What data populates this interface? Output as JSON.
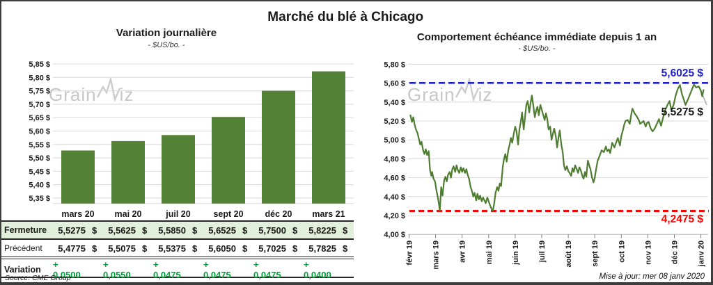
{
  "header": {
    "title": "Marché du blé à Chicago"
  },
  "watermark": {
    "prefix": "Grain",
    "suffix": "iz"
  },
  "footer": {
    "updated": "Mise à jour: mer 08 janv 2020"
  },
  "table": {
    "columns": [
      "mars 20",
      "mai 20",
      "juil 20",
      "sept 20",
      "déc 20",
      "mars 21"
    ],
    "currency": "$",
    "rows": [
      {
        "label": "Fermeture",
        "style": "close",
        "suffix": "$",
        "values": [
          "5,5275",
          "5,5625",
          "5,5850",
          "5,6525",
          "5,7500",
          "5,8225"
        ]
      },
      {
        "label": "Précédent",
        "style": "prev",
        "suffix": "$",
        "values": [
          "5,4775",
          "5,5075",
          "5,5375",
          "5,6050",
          "5,7025",
          "5,7825"
        ]
      },
      {
        "label": "Variation",
        "style": "var",
        "suffix": "",
        "values": [
          "+ 0,0500",
          "+ 0,0550",
          "+ 0,0475",
          "+ 0,0475",
          "+ 0,0475",
          "+ 0,0400"
        ]
      }
    ],
    "source": "Source: CME Group"
  },
  "chart_data": [
    {
      "id": "daily-variation",
      "type": "bar",
      "title": "Variation journalière",
      "subtitle": "- $US/bo. -",
      "categories": [
        "mars 20",
        "mai 20",
        "juil 20",
        "sept 20",
        "déc 20",
        "mars 21"
      ],
      "values": [
        5.5275,
        5.5625,
        5.585,
        5.6525,
        5.75,
        5.8225
      ],
      "ylim": [
        5.33,
        5.85
      ],
      "y_ticks": [
        5.85,
        5.8,
        5.75,
        5.7,
        5.65,
        5.6,
        5.55,
        5.5,
        5.45,
        5.4,
        5.35
      ],
      "y_tick_labels": [
        "5,85 $",
        "5,80 $",
        "5,75 $",
        "5,70 $",
        "5,65 $",
        "5,60 $",
        "5,55 $",
        "5,50 $",
        "5,45 $",
        "5,40 $",
        "5,35 $"
      ],
      "bar_color": "#538135",
      "grid": true,
      "legend": "none"
    },
    {
      "id": "immediate-term-1y",
      "type": "line",
      "title": "Comportement échéance immédiate depuis 1 an",
      "subtitle": "- $US/bo. -",
      "ylim": [
        4.0,
        5.8
      ],
      "y_ticks": [
        5.8,
        5.6,
        5.4,
        5.2,
        5.0,
        4.8,
        4.6,
        4.4,
        4.2,
        4.0
      ],
      "y_tick_labels": [
        "5,80 $",
        "5,60 $",
        "5,40 $",
        "5,20 $",
        "5,00 $",
        "4,80 $",
        "4,60 $",
        "4,40 $",
        "4,20 $",
        "4,00 $"
      ],
      "x_tick_labels": [
        "févr 19",
        "mars 19",
        "avr 19",
        "mai 19",
        "juin 19",
        "juil 19",
        "août 19",
        "sept 19",
        "oct 19",
        "nov 19",
        "déc 19",
        "janv 20"
      ],
      "line_color": "#4e7d31",
      "grid": true,
      "legend": "none",
      "high_line": {
        "value": 5.6025,
        "label": "5,6025 $",
        "color": "#2121cc"
      },
      "low_line": {
        "value": 4.2475,
        "label": "4,2475 $",
        "color": "#fe0000"
      },
      "last_value": 5.5275,
      "last_value_label": "5,5275 $",
      "series": [
        [
          0.05,
          5.26
        ],
        [
          0.11,
          5.19
        ],
        [
          0.16,
          5.24
        ],
        [
          0.21,
          5.16
        ],
        [
          0.26,
          5.11
        ],
        [
          0.32,
          5.07
        ],
        [
          0.37,
          5.01
        ],
        [
          0.42,
          4.95
        ],
        [
          0.47,
          4.98
        ],
        [
          0.53,
          4.89
        ],
        [
          0.58,
          4.85
        ],
        [
          0.63,
          4.9
        ],
        [
          0.68,
          4.84
        ],
        [
          0.74,
          4.88
        ],
        [
          0.79,
          4.68
        ],
        [
          0.84,
          4.62
        ],
        [
          0.87,
          4.66
        ],
        [
          0.92,
          4.59
        ],
        [
          0.98,
          4.56
        ],
        [
          1.03,
          4.47
        ],
        [
          1.08,
          4.4
        ],
        [
          1.13,
          4.31
        ],
        [
          1.16,
          4.25
        ],
        [
          1.21,
          4.5
        ],
        [
          1.26,
          4.41
        ],
        [
          1.32,
          4.57
        ],
        [
          1.37,
          4.61
        ],
        [
          1.42,
          4.56
        ],
        [
          1.47,
          4.63
        ],
        [
          1.53,
          4.66
        ],
        [
          1.58,
          4.6
        ],
        [
          1.63,
          4.69
        ],
        [
          1.68,
          4.72
        ],
        [
          1.74,
          4.66
        ],
        [
          1.79,
          4.73
        ],
        [
          1.84,
          4.68
        ],
        [
          1.89,
          4.65
        ],
        [
          1.95,
          4.71
        ],
        [
          2.0,
          4.66
        ],
        [
          2.05,
          4.7
        ],
        [
          2.11,
          4.65
        ],
        [
          2.16,
          4.69
        ],
        [
          2.21,
          4.63
        ],
        [
          2.26,
          4.59
        ],
        [
          2.32,
          4.5
        ],
        [
          2.37,
          4.46
        ],
        [
          2.42,
          4.4
        ],
        [
          2.47,
          4.44
        ],
        [
          2.53,
          4.36
        ],
        [
          2.58,
          4.43
        ],
        [
          2.63,
          4.37
        ],
        [
          2.68,
          4.41
        ],
        [
          2.74,
          4.35
        ],
        [
          2.79,
          4.39
        ],
        [
          2.84,
          4.36
        ],
        [
          2.89,
          4.33
        ],
        [
          2.95,
          4.39
        ],
        [
          3.0,
          4.35
        ],
        [
          3.05,
          4.31
        ],
        [
          3.11,
          4.27
        ],
        [
          3.16,
          4.25
        ],
        [
          3.21,
          4.33
        ],
        [
          3.26,
          4.44
        ],
        [
          3.32,
          4.5
        ],
        [
          3.37,
          4.46
        ],
        [
          3.42,
          4.54
        ],
        [
          3.47,
          4.51
        ],
        [
          3.53,
          4.71
        ],
        [
          3.58,
          4.8
        ],
        [
          3.63,
          4.85
        ],
        [
          3.68,
          4.77
        ],
        [
          3.74,
          4.89
        ],
        [
          3.79,
          4.95
        ],
        [
          3.84,
          5.02
        ],
        [
          3.89,
          4.97
        ],
        [
          3.95,
          5.07
        ],
        [
          4.0,
          5.14
        ],
        [
          4.05,
          5.09
        ],
        [
          4.11,
          4.95
        ],
        [
          4.16,
          5.11
        ],
        [
          4.21,
          5.19
        ],
        [
          4.26,
          5.29
        ],
        [
          4.32,
          5.11
        ],
        [
          4.37,
          5.24
        ],
        [
          4.42,
          5.37
        ],
        [
          4.47,
          5.41
        ],
        [
          4.53,
          5.29
        ],
        [
          4.58,
          5.39
        ],
        [
          4.63,
          5.47
        ],
        [
          4.68,
          5.37
        ],
        [
          4.74,
          5.24
        ],
        [
          4.79,
          5.31
        ],
        [
          4.84,
          5.35
        ],
        [
          4.89,
          5.26
        ],
        [
          4.95,
          5.37
        ],
        [
          5.0,
          5.32
        ],
        [
          5.05,
          5.27
        ],
        [
          5.11,
          5.21
        ],
        [
          5.16,
          5.28
        ],
        [
          5.21,
          5.22
        ],
        [
          5.26,
          5.11
        ],
        [
          5.32,
          5.14
        ],
        [
          5.37,
          5.0
        ],
        [
          5.42,
          5.06
        ],
        [
          5.47,
          5.12
        ],
        [
          5.53,
          5.04
        ],
        [
          5.58,
          4.92
        ],
        [
          5.63,
          5.02
        ],
        [
          5.68,
          5.1
        ],
        [
          5.74,
          4.95
        ],
        [
          5.79,
          4.87
        ],
        [
          5.84,
          4.73
        ],
        [
          5.89,
          4.68
        ],
        [
          5.95,
          4.72
        ],
        [
          6.0,
          4.67
        ],
        [
          6.05,
          4.65
        ],
        [
          6.11,
          4.62
        ],
        [
          6.16,
          4.7
        ],
        [
          6.21,
          4.66
        ],
        [
          6.26,
          4.73
        ],
        [
          6.32,
          4.69
        ],
        [
          6.37,
          4.65
        ],
        [
          6.42,
          4.71
        ],
        [
          6.47,
          4.68
        ],
        [
          6.53,
          4.62
        ],
        [
          6.58,
          4.59
        ],
        [
          6.63,
          4.66
        ],
        [
          6.68,
          4.61
        ],
        [
          6.74,
          4.78
        ],
        [
          6.79,
          4.73
        ],
        [
          6.84,
          4.69
        ],
        [
          6.89,
          4.61
        ],
        [
          6.95,
          4.55
        ],
        [
          7.0,
          4.6
        ],
        [
          7.05,
          4.69
        ],
        [
          7.11,
          4.78
        ],
        [
          7.18,
          4.83
        ],
        [
          7.26,
          4.89
        ],
        [
          7.34,
          4.87
        ],
        [
          7.42,
          4.93
        ],
        [
          7.47,
          4.88
        ],
        [
          7.53,
          4.9
        ],
        [
          7.58,
          4.86
        ],
        [
          7.66,
          4.97
        ],
        [
          7.74,
          4.92
        ],
        [
          7.79,
          4.96
        ],
        [
          7.87,
          5.02
        ],
        [
          7.95,
          4.94
        ],
        [
          8.0,
          5.04
        ],
        [
          8.05,
          5.09
        ],
        [
          8.11,
          5.16
        ],
        [
          8.16,
          5.2
        ],
        [
          8.24,
          5.21
        ],
        [
          8.32,
          5.17
        ],
        [
          8.37,
          5.26
        ],
        [
          8.42,
          5.33
        ],
        [
          8.5,
          5.28
        ],
        [
          8.58,
          5.25
        ],
        [
          8.66,
          5.21
        ],
        [
          8.71,
          5.17
        ],
        [
          8.76,
          5.18
        ],
        [
          8.84,
          5.2
        ],
        [
          8.92,
          5.14
        ],
        [
          8.97,
          5.18
        ],
        [
          9.03,
          5.19
        ],
        [
          9.11,
          5.12
        ],
        [
          9.18,
          5.09
        ],
        [
          9.26,
          5.12
        ],
        [
          9.34,
          5.17
        ],
        [
          9.42,
          5.22
        ],
        [
          9.5,
          5.15
        ],
        [
          9.58,
          5.24
        ],
        [
          9.66,
          5.32
        ],
        [
          9.74,
          5.37
        ],
        [
          9.82,
          5.41
        ],
        [
          9.89,
          5.31
        ],
        [
          9.97,
          5.37
        ],
        [
          10.05,
          5.47
        ],
        [
          10.13,
          5.54
        ],
        [
          10.21,
          5.58
        ],
        [
          10.29,
          5.48
        ],
        [
          10.34,
          5.44
        ],
        [
          10.42,
          5.37
        ],
        [
          10.53,
          5.44
        ],
        [
          10.63,
          5.51
        ],
        [
          10.74,
          5.585
        ],
        [
          10.82,
          5.555
        ],
        [
          10.92,
          5.565
        ],
        [
          11.0,
          5.52
        ],
        [
          11.05,
          5.46
        ],
        [
          11.1,
          5.5275
        ]
      ]
    }
  ]
}
